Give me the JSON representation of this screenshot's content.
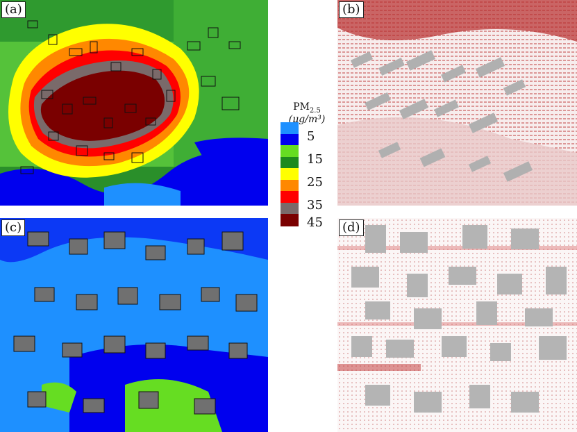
{
  "panels": {
    "a": {
      "label": "(a)"
    },
    "b": {
      "label": "(b)"
    },
    "c": {
      "label": "(c)"
    },
    "d": {
      "label": "(d)"
    }
  },
  "legend": {
    "title": "PM",
    "title_sub": "2.5",
    "unit": "(μg/m³)",
    "ticks": [
      "5",
      "15",
      "25",
      "35",
      "45"
    ],
    "colors": [
      "#1e90ff",
      "#0000ee",
      "#66dd22",
      "#1d8a1d",
      "#ffff00",
      "#ff8800",
      "#ff0000",
      "#7a6a6a",
      "#7a0000"
    ]
  }
}
